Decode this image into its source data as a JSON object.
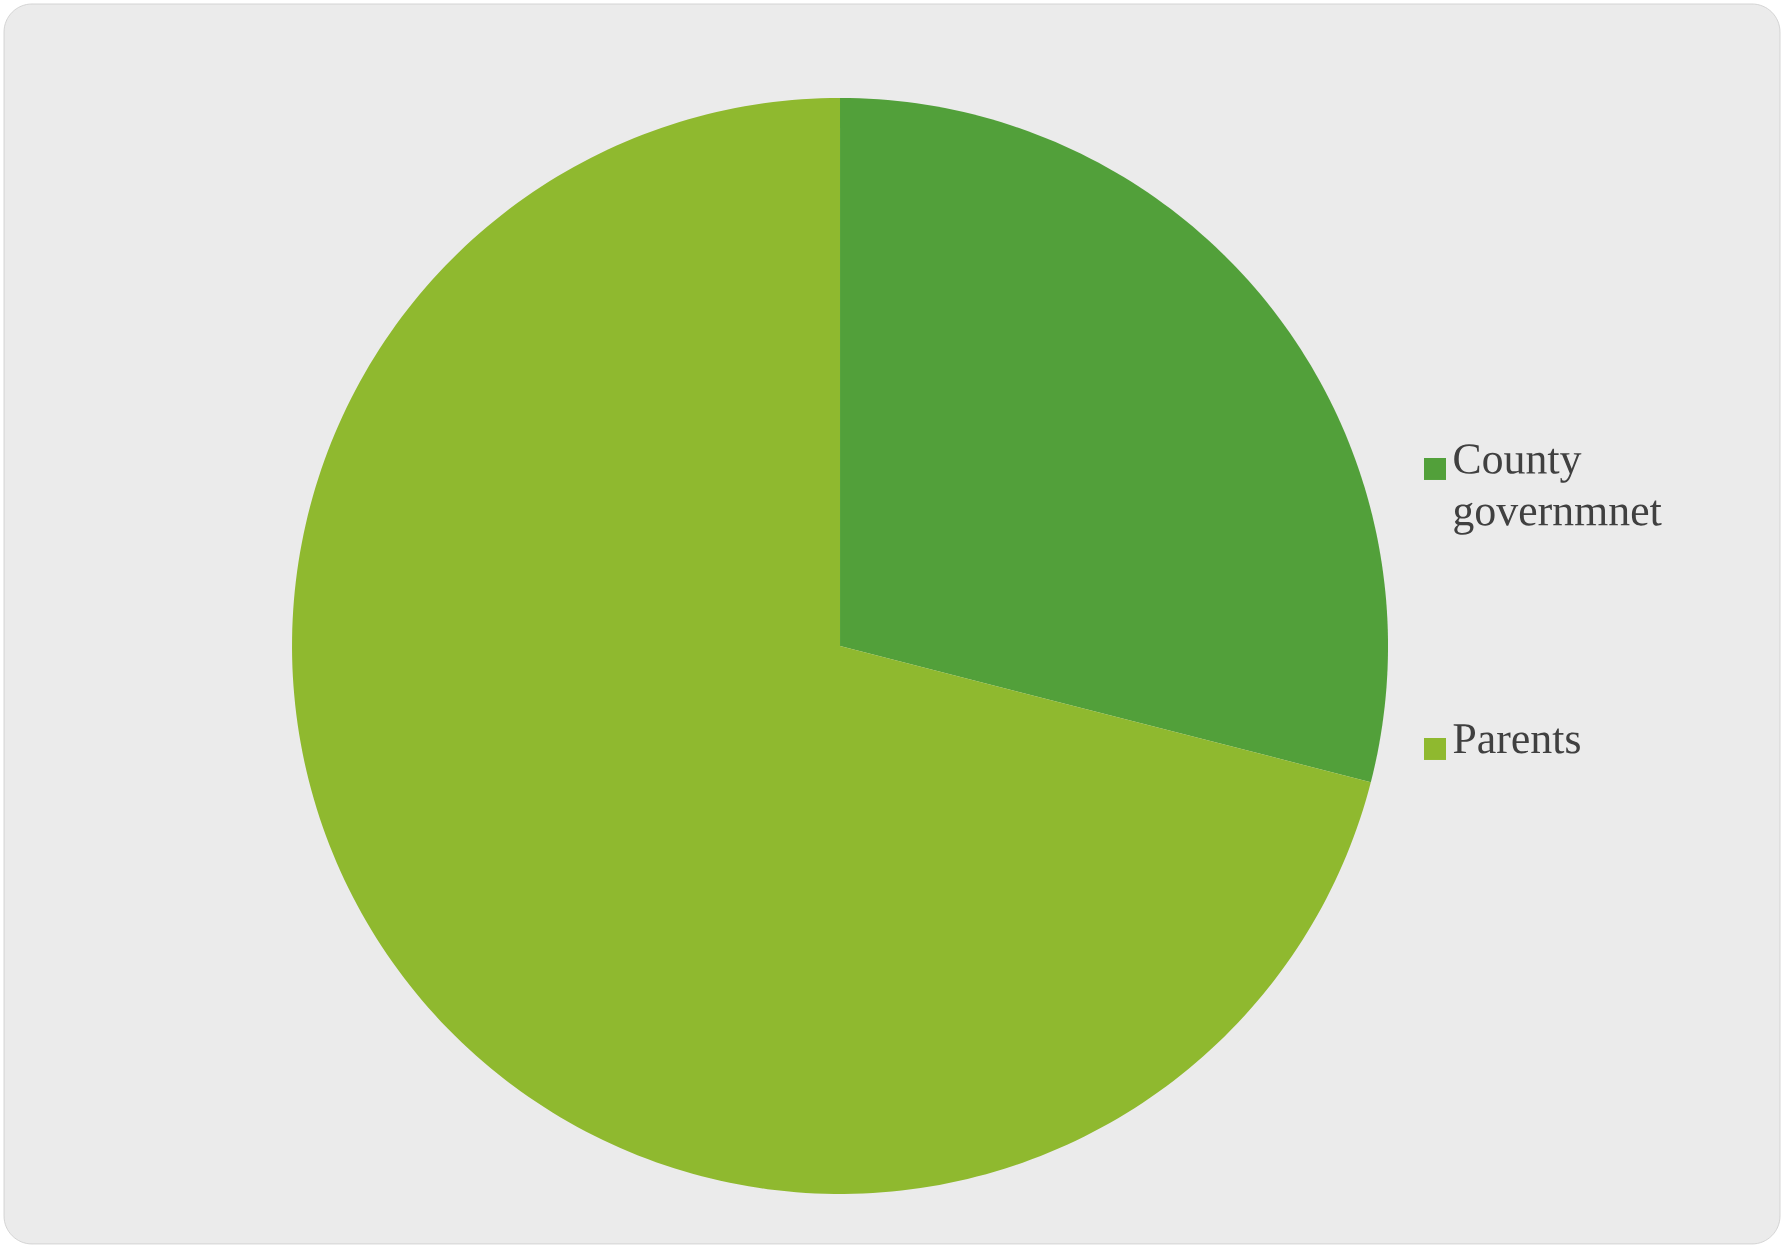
{
  "chart_data": {
    "type": "pie",
    "categories": [
      "County governmnet",
      "Parents"
    ],
    "values": [
      29,
      71
    ],
    "colors": [
      "#52a03a",
      "#8fb92f"
    ],
    "legend": "right"
  }
}
